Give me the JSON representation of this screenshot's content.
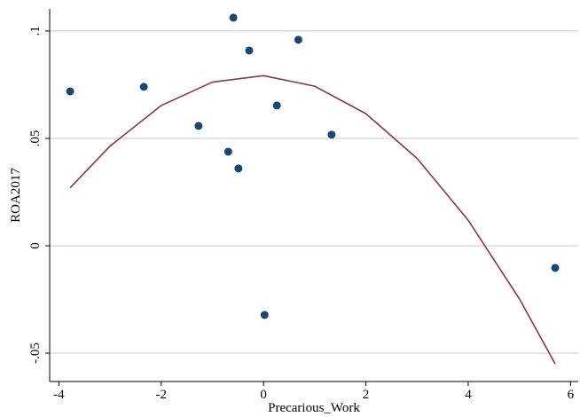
{
  "chart_data": {
    "type": "scatter",
    "x_label": "Precarious_Work",
    "y_label": "ROA2017",
    "series": [
      {
        "color": "#1a476f",
        "x": [
          -3.78,
          -2.34,
          -1.27,
          -0.49,
          -0.69,
          -0.28,
          -0.59,
          0.26,
          0.68,
          1.33,
          0.02,
          5.7
        ],
        "values": [
          0.0719,
          0.074,
          0.0558,
          0.036,
          0.0438,
          0.0909,
          0.1062,
          0.0653,
          0.0959,
          0.0517,
          -0.0322,
          -0.0103
        ]
      }
    ],
    "fit": {
      "color": "#90353b",
      "x": [
        -3.78,
        -3,
        -2,
        -1,
        0,
        1,
        2,
        3,
        4,
        5,
        5.7
      ],
      "values": [
        0.027,
        0.0464,
        0.0653,
        0.0762,
        0.0792,
        0.0743,
        0.0615,
        0.0407,
        0.0119,
        -0.0247,
        -0.055
      ]
    },
    "xlim": [
      -4.18,
      6.15
    ],
    "ylim": [
      -0.0632,
      0.1103
    ],
    "xticks": [
      -4,
      -2,
      0,
      2,
      4,
      6
    ],
    "yticks": [
      {
        "value": -0.05,
        "label": "-.05"
      },
      {
        "value": 0,
        "label": "0"
      },
      {
        "value": 0.05,
        "label": ".05"
      },
      {
        "value": 0.1,
        "label": ".1"
      }
    ],
    "grid": true
  }
}
